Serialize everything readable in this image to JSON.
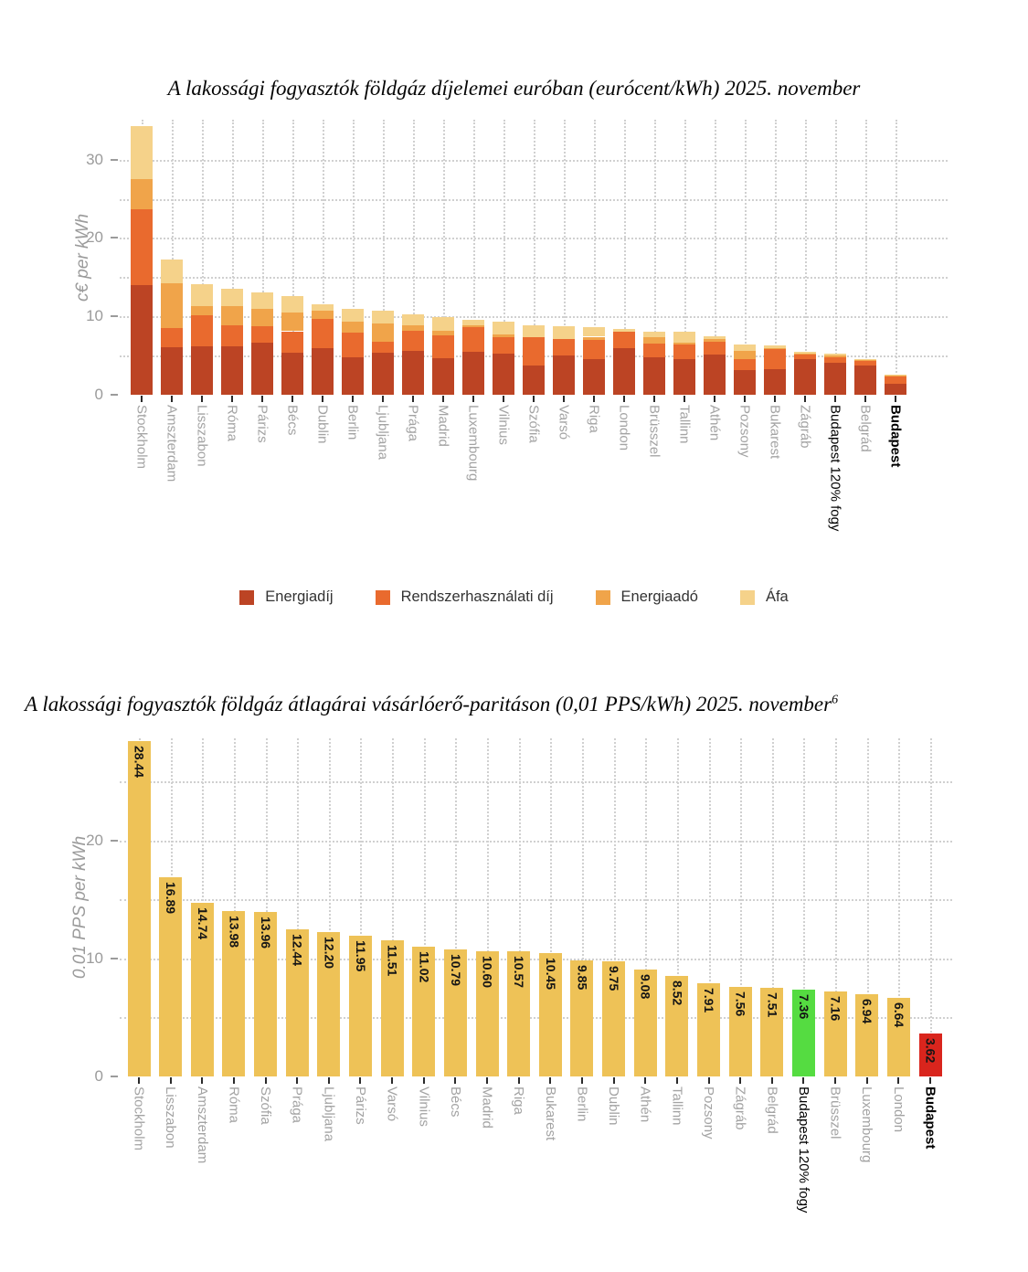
{
  "page": {
    "background": "#ffffff"
  },
  "chart_data": [
    {
      "type": "bar",
      "stacked": true,
      "title": "A lakossági fogyasztók földgáz díjelemei euróban (eurócent/kWh) 2025. november",
      "ylabel": "c€ per kWh",
      "ylim": [
        0,
        35
      ],
      "yticks": [
        0,
        10,
        20,
        30
      ],
      "grid_minor_values": [
        5,
        10,
        15,
        20,
        25,
        30
      ],
      "grid": "dotted",
      "legend_position": "bottom",
      "categories": [
        "Stockholm",
        "Amszterdam",
        "Lisszabon",
        "Róma",
        "Párizs",
        "Bécs",
        "Dublin",
        "Berlin",
        "Ljubljana",
        "Prága",
        "Madrid",
        "Luxembourg",
        "Vilnius",
        "Szófia",
        "Varsó",
        "Riga",
        "London",
        "Brüsszel",
        "Tallinn",
        "Athén",
        "Pozsony",
        "Bukarest",
        "Zágráb",
        "Budapest 120% fogy",
        "Belgrád",
        "Budapest"
      ],
      "highlighted_categories": [
        "Budapest 120% fogy",
        "Budapest"
      ],
      "bold_categories": [
        "Budapest"
      ],
      "colors": [
        "#BC4424",
        "#E96A2E",
        "#F0A44A",
        "#F5D28A"
      ],
      "series": [
        {
          "name": "Energiadíj",
          "values": [
            14.0,
            6.1,
            6.2,
            6.2,
            6.6,
            5.4,
            5.9,
            4.8,
            5.4,
            5.6,
            4.7,
            5.5,
            5.3,
            3.7,
            5.0,
            4.5,
            5.9,
            4.8,
            4.5,
            5.1,
            3.1,
            3.3,
            4.5,
            4.1,
            3.7,
            1.4
          ]
        },
        {
          "name": "Rendszerhasználati díj",
          "values": [
            9.7,
            2.4,
            3.9,
            2.7,
            2.1,
            2.7,
            3.8,
            3.1,
            1.4,
            2.6,
            2.9,
            3.1,
            2.0,
            3.6,
            2.1,
            2.5,
            2.1,
            1.7,
            1.9,
            1.7,
            1.5,
            2.6,
            0.6,
            0.7,
            0.6,
            0.9
          ]
        },
        {
          "name": "Energiaadó",
          "values": [
            3.8,
            5.7,
            1.2,
            2.4,
            2.2,
            2.4,
            1.0,
            1.4,
            2.3,
            0.7,
            0.6,
            0.2,
            0.4,
            0.0,
            0.0,
            0.4,
            0.0,
            0.8,
            0.3,
            0.3,
            1.0,
            0.1,
            0.2,
            0.2,
            0.1,
            0.2
          ]
        },
        {
          "name": "Áfa",
          "values": [
            6.8,
            3.1,
            2.8,
            2.2,
            2.2,
            2.1,
            0.8,
            1.7,
            1.6,
            1.3,
            1.7,
            0.7,
            1.6,
            1.5,
            1.6,
            1.2,
            0.4,
            0.8,
            1.3,
            0.4,
            0.8,
            0.3,
            0.2,
            0.3,
            0.1,
            0.1
          ]
        }
      ]
    },
    {
      "type": "bar",
      "stacked": false,
      "title": "A lakossági fogyasztók földgáz átlagárai vásárlóerő-paritáson (0,01 PPS/kWh) 2025. november",
      "title_superscript": "6",
      "ylabel": "0.01 PPS per kWh",
      "ylim": [
        0,
        28.7
      ],
      "yticks": [
        0,
        10,
        20
      ],
      "grid_minor_values": [
        5,
        10,
        15,
        20,
        25
      ],
      "grid": "dotted",
      "value_labels": true,
      "categories": [
        "Stockholm",
        "Lisszabon",
        "Amszterdam",
        "Róma",
        "Szófia",
        "Prága",
        "Ljubljana",
        "Párizs",
        "Varsó",
        "Vilnius",
        "Bécs",
        "Madrid",
        "Riga",
        "Bukarest",
        "Berlin",
        "Dublin",
        "Athén",
        "Tallinn",
        "Pozsony",
        "Zágráb",
        "Belgrád",
        "Budapest 120% fogy",
        "Brüsszel",
        "Luxembourg",
        "London",
        "Budapest"
      ],
      "values": [
        28.44,
        16.89,
        14.74,
        13.98,
        13.96,
        12.44,
        12.2,
        11.95,
        11.51,
        11.02,
        10.79,
        10.6,
        10.57,
        10.45,
        9.85,
        9.75,
        9.08,
        8.52,
        7.91,
        7.56,
        7.51,
        7.36,
        7.16,
        6.94,
        6.64,
        3.62
      ],
      "highlighted_categories": [
        "Budapest 120% fogy",
        "Budapest"
      ],
      "bold_categories": [
        "Budapest"
      ],
      "bar_color_default": "#EEC257",
      "special_bar_colors": {
        "Budapest 120% fogy": "#55DC41",
        "Budapest": "#D9251D"
      }
    }
  ],
  "style_colors": {
    "grid": "#d0d0d0",
    "axis_text": "#9b9b9b",
    "category_text": "#a3a3a3",
    "highlight_text": "#000000",
    "value_label_text": "#151515",
    "legend_text": "#333333",
    "tick_mark": "#2b2b2b"
  }
}
